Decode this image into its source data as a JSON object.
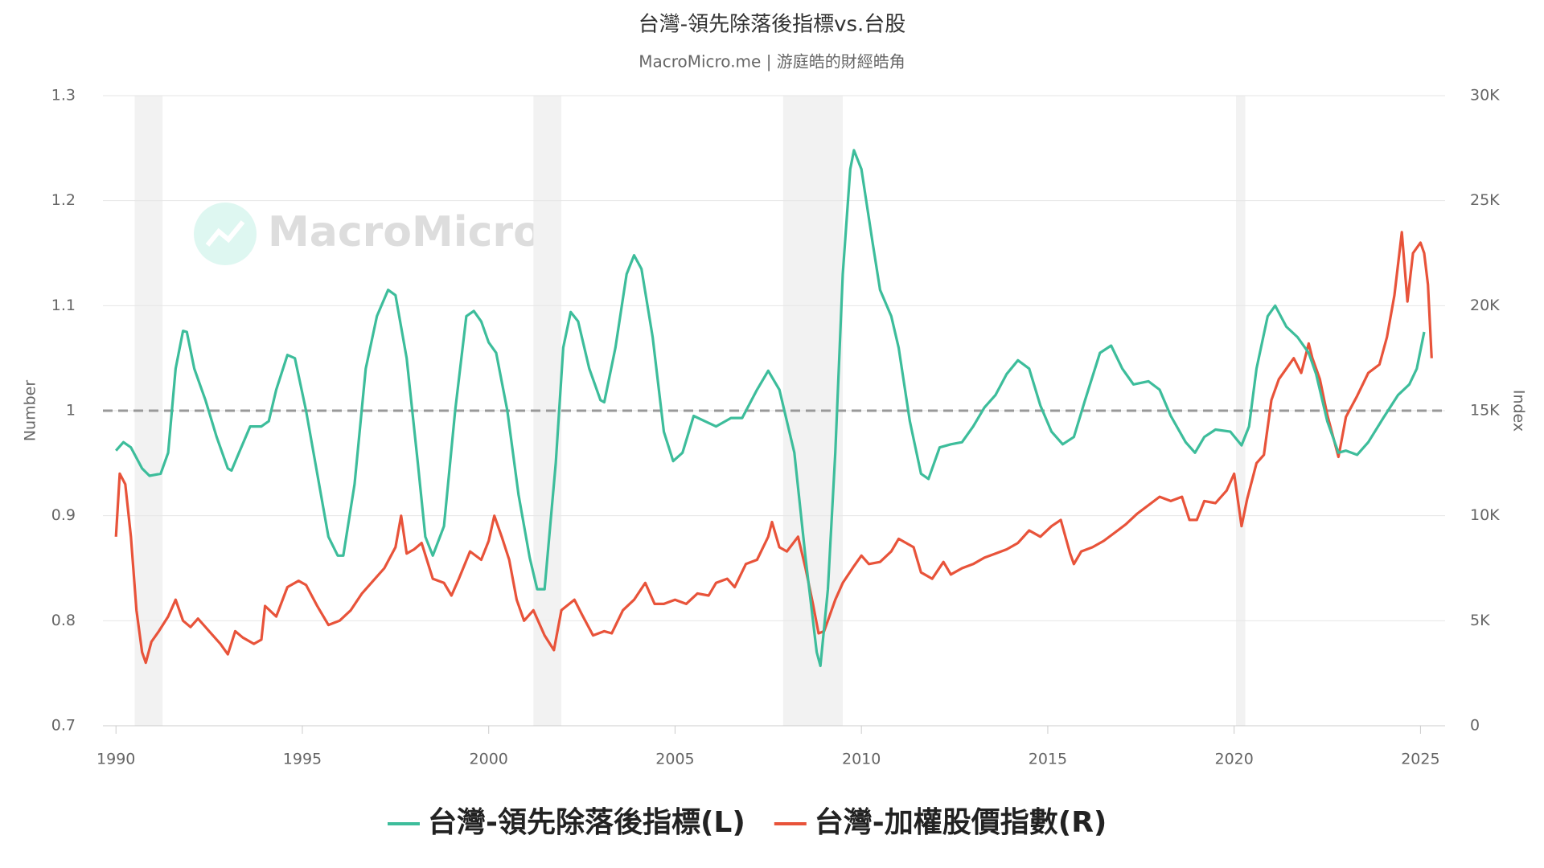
{
  "chart_data": {
    "type": "line",
    "title": "台灣-領先除落後指標vs.台股",
    "subtitle": "MacroMicro.me | 游庭皓的財經皓角",
    "watermark": "MacroMicro",
    "y_label": "Number",
    "y2_label": "Index",
    "xlim": [
      1989.65,
      2025.66
    ],
    "xticks": [
      1990,
      1995,
      2000,
      2005,
      2010,
      2015,
      2020,
      2025
    ],
    "ylim": [
      0.7,
      1.3
    ],
    "yticks": [
      0.7,
      0.8,
      0.9,
      1,
      1.1,
      1.2,
      1.3
    ],
    "y2lim": [
      0,
      30000
    ],
    "y2ticks": [
      {
        "value": 0,
        "label": "0"
      },
      {
        "value": 5000,
        "label": "5K"
      },
      {
        "value": 10000,
        "label": "10K"
      },
      {
        "value": 15000,
        "label": "15K"
      },
      {
        "value": 20000,
        "label": "20K"
      },
      {
        "value": 25000,
        "label": "25K"
      },
      {
        "value": 30000,
        "label": "30K"
      }
    ],
    "grid": true,
    "reference_line": 1,
    "recessions": [
      [
        1990.5,
        1991.25
      ],
      [
        2001.2,
        2001.95
      ],
      [
        2007.9,
        2009.5
      ],
      [
        2020.05,
        2020.3
      ]
    ],
    "series": [
      {
        "name": "台灣-領先除落後指標(L)",
        "color": "#3dbd9b",
        "axis": "y",
        "x": [
          1990.0,
          1990.2,
          1990.4,
          1990.7,
          1990.9,
          1991.2,
          1991.4,
          1991.6,
          1991.8,
          1991.9,
          1992.1,
          1992.4,
          1992.7,
          1993.0,
          1993.1,
          1993.3,
          1993.6,
          1993.9,
          1994.1,
          1994.3,
          1994.6,
          1994.8,
          1995.1,
          1995.4,
          1995.7,
          1995.95,
          1996.1,
          1996.4,
          1996.7,
          1997.0,
          1997.3,
          1997.5,
          1997.8,
          1998.1,
          1998.3,
          1998.5,
          1998.8,
          1999.1,
          1999.4,
          1999.6,
          1999.8,
          2000.0,
          2000.2,
          2000.5,
          2000.8,
          2001.1,
          2001.3,
          2001.5,
          2001.8,
          2002.0,
          2002.2,
          2002.4,
          2002.7,
          2003.0,
          2003.1,
          2003.4,
          2003.7,
          2003.9,
          2004.1,
          2004.4,
          2004.7,
          2004.95,
          2005.2,
          2005.5,
          2005.8,
          2006.1,
          2006.5,
          2006.8,
          2007.2,
          2007.5,
          2007.8,
          2008.2,
          2008.5,
          2008.8,
          2008.9,
          2009.1,
          2009.3,
          2009.5,
          2009.7,
          2009.8,
          2010.0,
          2010.3,
          2010.5,
          2010.8,
          2011.0,
          2011.3,
          2011.6,
          2011.8,
          2012.1,
          2012.4,
          2012.7,
          2013.0,
          2013.3,
          2013.6,
          2013.9,
          2014.2,
          2014.5,
          2014.8,
          2015.1,
          2015.4,
          2015.7,
          2016.0,
          2016.4,
          2016.7,
          2017.0,
          2017.3,
          2017.7,
          2018.0,
          2018.3,
          2018.7,
          2018.95,
          2019.2,
          2019.5,
          2019.9,
          2020.2,
          2020.4,
          2020.6,
          2020.9,
          2021.1,
          2021.4,
          2021.7,
          2022.0,
          2022.2,
          2022.5,
          2022.8,
          2023.0,
          2023.3,
          2023.6,
          2024.0,
          2024.4,
          2024.7,
          2024.9,
          2025.1
        ],
        "values": [
          0.962,
          0.97,
          0.965,
          0.945,
          0.938,
          0.94,
          0.96,
          1.04,
          1.076,
          1.075,
          1.04,
          1.01,
          0.975,
          0.945,
          0.943,
          0.96,
          0.985,
          0.985,
          0.99,
          1.02,
          1.053,
          1.05,
          1.0,
          0.94,
          0.88,
          0.862,
          0.862,
          0.93,
          1.04,
          1.09,
          1.115,
          1.11,
          1.05,
          0.95,
          0.88,
          0.862,
          0.89,
          1.0,
          1.09,
          1.095,
          1.085,
          1.065,
          1.055,
          1.0,
          0.92,
          0.86,
          0.83,
          0.83,
          0.95,
          1.06,
          1.094,
          1.085,
          1.04,
          1.01,
          1.008,
          1.06,
          1.13,
          1.148,
          1.135,
          1.07,
          0.98,
          0.952,
          0.96,
          0.995,
          0.99,
          0.985,
          0.993,
          0.993,
          1.02,
          1.038,
          1.02,
          0.96,
          0.86,
          0.77,
          0.757,
          0.83,
          0.96,
          1.13,
          1.23,
          1.248,
          1.23,
          1.16,
          1.115,
          1.09,
          1.06,
          0.99,
          0.94,
          0.935,
          0.965,
          0.968,
          0.97,
          0.985,
          1.003,
          1.015,
          1.035,
          1.048,
          1.04,
          1.005,
          0.98,
          0.968,
          0.975,
          1.01,
          1.055,
          1.062,
          1.04,
          1.025,
          1.028,
          1.02,
          0.995,
          0.97,
          0.96,
          0.975,
          0.982,
          0.98,
          0.967,
          0.985,
          1.04,
          1.09,
          1.1,
          1.08,
          1.07,
          1.055,
          1.035,
          0.99,
          0.96,
          0.962,
          0.958,
          0.97,
          0.993,
          1.015,
          1.025,
          1.04,
          1.075
        ]
      },
      {
        "name": "台灣-加權股價指數(R)",
        "color": "#e8533a",
        "axis": "y2",
        "x": [
          1990.0,
          1990.1,
          1990.25,
          1990.4,
          1990.55,
          1990.7,
          1990.8,
          1990.95,
          1991.15,
          1991.4,
          1991.6,
          1991.8,
          1992.0,
          1992.2,
          1992.5,
          1992.8,
          1993.0,
          1993.2,
          1993.4,
          1993.7,
          1993.9,
          1994.0,
          1994.3,
          1994.6,
          1994.9,
          1995.1,
          1995.4,
          1995.7,
          1996.0,
          1996.3,
          1996.6,
          1996.9,
          1997.2,
          1997.5,
          1997.65,
          1997.8,
          1998.0,
          1998.2,
          1998.5,
          1998.8,
          1999.0,
          1999.2,
          1999.5,
          1999.8,
          2000.0,
          2000.15,
          2000.35,
          2000.55,
          2000.75,
          2000.95,
          2001.2,
          2001.5,
          2001.75,
          2001.95,
          2002.3,
          2002.5,
          2002.8,
          2003.1,
          2003.3,
          2003.6,
          2003.9,
          2004.2,
          2004.45,
          2004.7,
          2005.0,
          2005.3,
          2005.6,
          2005.9,
          2006.1,
          2006.4,
          2006.6,
          2006.9,
          2007.2,
          2007.5,
          2007.6,
          2007.8,
          2008.0,
          2008.3,
          2008.5,
          2008.7,
          2008.85,
          2009.0,
          2009.3,
          2009.5,
          2009.8,
          2010.0,
          2010.2,
          2010.5,
          2010.8,
          2011.0,
          2011.2,
          2011.4,
          2011.6,
          2011.9,
          2012.2,
          2012.4,
          2012.7,
          2013.0,
          2013.3,
          2013.6,
          2013.9,
          2014.2,
          2014.5,
          2014.8,
          2015.1,
          2015.35,
          2015.6,
          2015.7,
          2015.9,
          2016.2,
          2016.5,
          2016.8,
          2017.1,
          2017.4,
          2017.7,
          2018.0,
          2018.3,
          2018.6,
          2018.8,
          2019.0,
          2019.2,
          2019.5,
          2019.8,
          2020.0,
          2020.2,
          2020.35,
          2020.6,
          2020.8,
          2021.0,
          2021.2,
          2021.4,
          2021.6,
          2021.8,
          2022.0,
          2022.1,
          2022.3,
          2022.5,
          2022.8,
          2023.0,
          2023.3,
          2023.6,
          2023.9,
          2024.1,
          2024.3,
          2024.5,
          2024.65,
          2024.8,
          2025.0,
          2025.1,
          2025.2,
          2025.3
        ],
        "values": [
          9000,
          12000,
          11500,
          9000,
          5500,
          3500,
          3000,
          4000,
          4500,
          5200,
          6000,
          5000,
          4700,
          5100,
          4500,
          3900,
          3400,
          4500,
          4200,
          3900,
          4100,
          5700,
          5200,
          6600,
          6900,
          6700,
          5700,
          4800,
          5000,
          5500,
          6300,
          6900,
          7500,
          8500,
          10000,
          8200,
          8400,
          8700,
          7000,
          6800,
          6200,
          7000,
          8300,
          7900,
          8800,
          10000,
          9000,
          7900,
          6000,
          5000,
          5500,
          4300,
          3600,
          5500,
          6000,
          5300,
          4300,
          4500,
          4400,
          5500,
          6000,
          6800,
          5800,
          5800,
          6000,
          5800,
          6300,
          6200,
          6800,
          7000,
          6600,
          7700,
          7900,
          9000,
          9700,
          8500,
          8300,
          9000,
          7500,
          5800,
          4400,
          4500,
          6000,
          6800,
          7600,
          8100,
          7700,
          7800,
          8300,
          8900,
          8700,
          8500,
          7300,
          7000,
          7800,
          7200,
          7500,
          7700,
          8000,
          8200,
          8400,
          8700,
          9300,
          9000,
          9500,
          9800,
          8200,
          7700,
          8300,
          8500,
          8800,
          9200,
          9600,
          10100,
          10500,
          10900,
          10700,
          10900,
          9800,
          9800,
          10700,
          10600,
          11200,
          12000,
          9500,
          10800,
          12500,
          12900,
          15500,
          16500,
          17000,
          17500,
          16800,
          18200,
          17500,
          16500,
          14800,
          12800,
          14700,
          15700,
          16800,
          17200,
          18500,
          20500,
          23500,
          20200,
          22500,
          23000,
          22500,
          21000,
          17500
        ]
      }
    ]
  }
}
